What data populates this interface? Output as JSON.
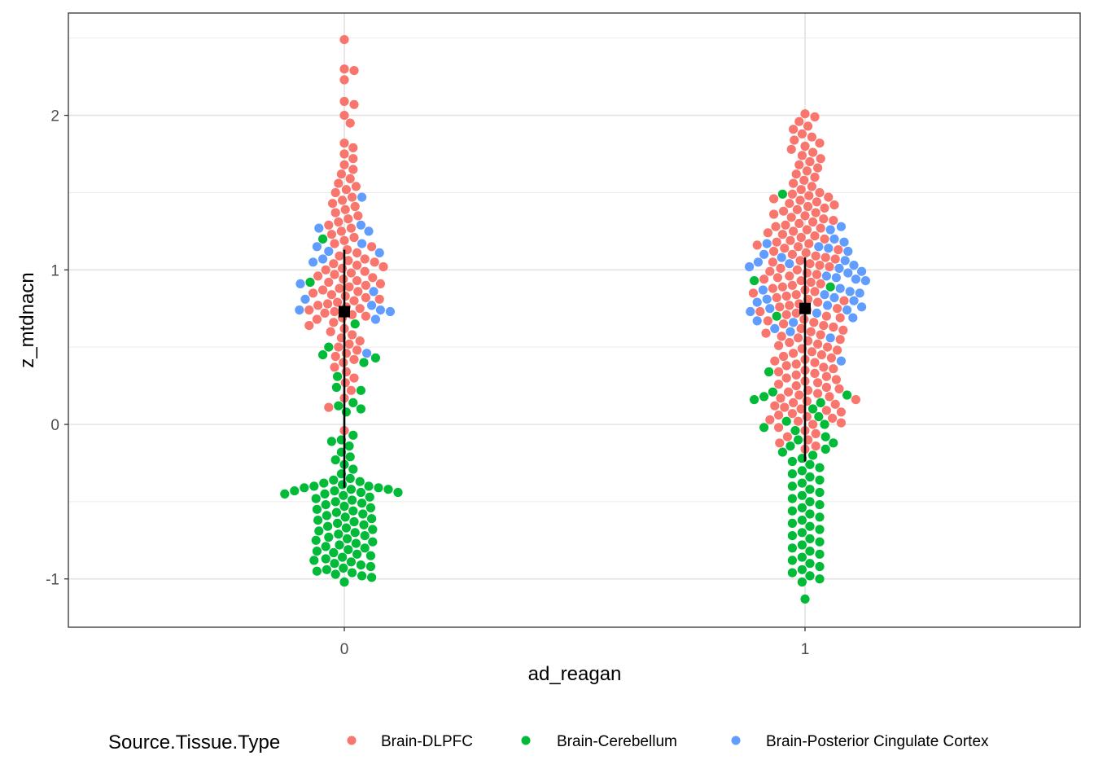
{
  "chart_data": {
    "type": "scatter",
    "subtype": "beeswarm",
    "xlabel": "ad_reagan",
    "ylabel": "z_mtdnacn",
    "categories": [
      "0",
      "1"
    ],
    "ylim": [
      -1.25,
      2.6
    ],
    "y_ticks": [
      -1,
      0,
      1,
      2
    ],
    "y_tick_labels": [
      "-1",
      "0",
      "1",
      "2"
    ],
    "grid": true,
    "legend_position": "bottom",
    "legend": {
      "title": "Source.Tissue.Type",
      "entries": [
        {
          "name": "Brain-DLPFC",
          "color": "#F8766D"
        },
        {
          "name": "Brain-Cerebellum",
          "color": "#00BA38"
        },
        {
          "name": "Brain-Posterior Cingulate Cortex",
          "color": "#619CFF"
        }
      ]
    },
    "series": [
      {
        "name": "Brain-DLPFC",
        "color": "#F8766D",
        "values": {
          "0": [
            2.49,
            2.3,
            2.29,
            2.23,
            2.09,
            2.07,
            2.0,
            1.95,
            1.82,
            1.79,
            1.75,
            1.72,
            1.68,
            1.65,
            1.62,
            1.59,
            1.56,
            1.54,
            1.52,
            1.5,
            1.47,
            1.45,
            1.43,
            1.41,
            1.39,
            1.37,
            1.35,
            1.33,
            1.31,
            1.29,
            1.27,
            1.25,
            1.23,
            1.21,
            1.19,
            1.17,
            1.15,
            1.13,
            1.11,
            1.09,
            1.07,
            1.06,
            1.05,
            1.04,
            1.03,
            1.02,
            1.01,
            1.0,
            0.99,
            0.98,
            0.97,
            0.96,
            0.95,
            0.94,
            0.93,
            0.92,
            0.91,
            0.9,
            0.89,
            0.88,
            0.87,
            0.86,
            0.85,
            0.84,
            0.83,
            0.82,
            0.81,
            0.8,
            0.79,
            0.78,
            0.77,
            0.76,
            0.75,
            0.74,
            0.73,
            0.72,
            0.71,
            0.7,
            0.69,
            0.68,
            0.66,
            0.64,
            0.62,
            0.6,
            0.58,
            0.56,
            0.54,
            0.52,
            0.5,
            0.48,
            0.46,
            0.44,
            0.42,
            0.4,
            0.37,
            0.34,
            0.3,
            0.27,
            0.22,
            0.17,
            0.11,
            -0.04
          ],
          "1": [
            2.01,
            1.99,
            1.96,
            1.93,
            1.91,
            1.88,
            1.86,
            1.84,
            1.82,
            1.8,
            1.78,
            1.76,
            1.74,
            1.72,
            1.7,
            1.68,
            1.66,
            1.64,
            1.62,
            1.6,
            1.58,
            1.56,
            1.54,
            1.52,
            1.5,
            1.49,
            1.48,
            1.47,
            1.46,
            1.45,
            1.44,
            1.43,
            1.42,
            1.41,
            1.4,
            1.39,
            1.38,
            1.37,
            1.36,
            1.35,
            1.34,
            1.33,
            1.32,
            1.31,
            1.3,
            1.29,
            1.28,
            1.27,
            1.26,
            1.25,
            1.24,
            1.23,
            1.22,
            1.21,
            1.2,
            1.19,
            1.18,
            1.17,
            1.16,
            1.15,
            1.14,
            1.13,
            1.12,
            1.11,
            1.1,
            1.09,
            1.08,
            1.07,
            1.06,
            1.05,
            1.04,
            1.03,
            1.02,
            1.01,
            1.0,
            0.99,
            0.98,
            0.97,
            0.96,
            0.95,
            0.94,
            0.93,
            0.92,
            0.91,
            0.9,
            0.89,
            0.88,
            0.87,
            0.86,
            0.85,
            0.84,
            0.83,
            0.82,
            0.81,
            0.8,
            0.79,
            0.78,
            0.77,
            0.76,
            0.75,
            0.74,
            0.73,
            0.72,
            0.71,
            0.7,
            0.69,
            0.68,
            0.67,
            0.66,
            0.65,
            0.64,
            0.63,
            0.62,
            0.61,
            0.6,
            0.59,
            0.58,
            0.57,
            0.56,
            0.55,
            0.54,
            0.53,
            0.52,
            0.51,
            0.5,
            0.49,
            0.48,
            0.47,
            0.46,
            0.45,
            0.44,
            0.43,
            0.42,
            0.41,
            0.4,
            0.39,
            0.38,
            0.37,
            0.36,
            0.35,
            0.34,
            0.33,
            0.32,
            0.31,
            0.3,
            0.29,
            0.28,
            0.27,
            0.26,
            0.25,
            0.24,
            0.23,
            0.22,
            0.21,
            0.2,
            0.19,
            0.18,
            0.17,
            0.16,
            0.15,
            0.14,
            0.13,
            0.12,
            0.11,
            0.1,
            0.09,
            0.08,
            0.07,
            0.06,
            0.05,
            0.04,
            0.03,
            0.02,
            0.01,
            0.0,
            -0.02,
            -0.04,
            -0.06,
            -0.08,
            -0.1,
            -0.12,
            -0.14,
            -0.16
          ]
        }
      },
      {
        "name": "Brain-Cerebellum",
        "color": "#00BA38",
        "values": {
          "0": [
            1.2,
            0.92,
            0.65,
            0.5,
            0.45,
            0.43,
            0.4,
            0.31,
            0.24,
            0.22,
            0.14,
            0.12,
            0.1,
            0.08,
            -0.07,
            -0.1,
            -0.11,
            -0.14,
            -0.18,
            -0.21,
            -0.23,
            -0.26,
            -0.29,
            -0.32,
            -0.35,
            -0.36,
            -0.37,
            -0.38,
            -0.39,
            -0.4,
            -0.4,
            -0.41,
            -0.41,
            -0.42,
            -0.42,
            -0.43,
            -0.43,
            -0.44,
            -0.44,
            -0.45,
            -0.45,
            -0.46,
            -0.47,
            -0.48,
            -0.49,
            -0.5,
            -0.51,
            -0.52,
            -0.53,
            -0.54,
            -0.55,
            -0.56,
            -0.57,
            -0.58,
            -0.59,
            -0.6,
            -0.61,
            -0.62,
            -0.63,
            -0.64,
            -0.65,
            -0.66,
            -0.67,
            -0.68,
            -0.69,
            -0.7,
            -0.71,
            -0.72,
            -0.73,
            -0.74,
            -0.75,
            -0.76,
            -0.77,
            -0.78,
            -0.79,
            -0.8,
            -0.81,
            -0.82,
            -0.83,
            -0.84,
            -0.85,
            -0.86,
            -0.87,
            -0.88,
            -0.89,
            -0.9,
            -0.91,
            -0.92,
            -0.93,
            -0.94,
            -0.95,
            -0.96,
            -0.97,
            -0.98,
            -0.99,
            -1.02
          ],
          "1": [
            1.49,
            0.93,
            0.89,
            0.7,
            0.34,
            0.21,
            0.19,
            0.18,
            0.16,
            0.14,
            0.1,
            0.05,
            0.02,
            0.0,
            -0.02,
            -0.04,
            -0.08,
            -0.1,
            -0.12,
            -0.14,
            -0.16,
            -0.18,
            -0.2,
            -0.22,
            -0.24,
            -0.26,
            -0.28,
            -0.3,
            -0.32,
            -0.34,
            -0.36,
            -0.38,
            -0.4,
            -0.42,
            -0.44,
            -0.46,
            -0.48,
            -0.5,
            -0.52,
            -0.54,
            -0.56,
            -0.58,
            -0.6,
            -0.62,
            -0.64,
            -0.66,
            -0.68,
            -0.7,
            -0.72,
            -0.74,
            -0.76,
            -0.78,
            -0.8,
            -0.82,
            -0.84,
            -0.86,
            -0.88,
            -0.9,
            -0.92,
            -0.94,
            -0.96,
            -0.98,
            -1.0,
            -1.02,
            -1.13
          ]
        }
      },
      {
        "name": "Brain-Posterior Cingulate Cortex",
        "color": "#619CFF",
        "values": {
          "0": [
            1.47,
            1.29,
            1.27,
            1.25,
            1.17,
            1.15,
            1.12,
            1.11,
            1.07,
            1.05,
            0.91,
            0.86,
            0.81,
            0.77,
            0.74,
            0.74,
            0.73,
            0.68,
            0.46
          ],
          "1": [
            1.28,
            1.26,
            1.2,
            1.18,
            1.17,
            1.15,
            1.14,
            1.12,
            1.1,
            1.08,
            1.06,
            1.05,
            1.04,
            1.03,
            1.02,
            1.01,
            0.99,
            0.98,
            0.96,
            0.95,
            0.94,
            0.93,
            0.88,
            0.87,
            0.86,
            0.85,
            0.84,
            0.82,
            0.81,
            0.8,
            0.79,
            0.77,
            0.76,
            0.75,
            0.74,
            0.73,
            0.72,
            0.69,
            0.67,
            0.66,
            0.62,
            0.6,
            0.56,
            0.41
          ]
        }
      }
    ],
    "summary": [
      {
        "category": "0",
        "mean": 0.73,
        "lower": -0.41,
        "upper": 1.13,
        "color": "#000000"
      },
      {
        "category": "1",
        "mean": 0.75,
        "lower": -0.24,
        "upper": 1.08,
        "color": "#000000"
      }
    ]
  }
}
